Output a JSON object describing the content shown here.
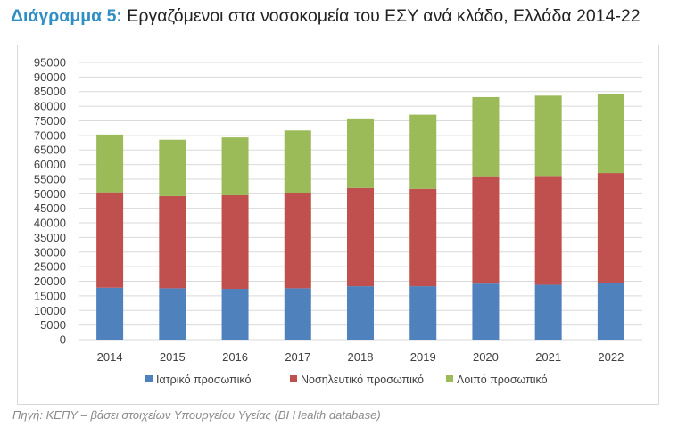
{
  "title": {
    "lead": "Διάγραμμα 5:",
    "text": "Εργαζόμενοι στα νοσοκομεία του ΕΣΥ ανά κλάδο, Ελλάδα 2014-22"
  },
  "source": "Πηγή: ΚΕΠΥ – βάσει στοιχείων Υπουργείου Υγείας (BI Health database)",
  "colors": {
    "series": [
      "#4f81bd",
      "#c0504d",
      "#9bbb59"
    ],
    "grid": "#d9d9d9",
    "axis_text": "#404040"
  },
  "chart_data": {
    "type": "bar",
    "stacked": true,
    "categories": [
      "2014",
      "2015",
      "2016",
      "2017",
      "2018",
      "2019",
      "2020",
      "2021",
      "2022"
    ],
    "series": [
      {
        "name": "Ιατρικό προσωπικό",
        "values": [
          17800,
          17600,
          17400,
          17600,
          18300,
          18300,
          19200,
          18800,
          19400
        ]
      },
      {
        "name": "Νοσηλευτικό προσωπικό",
        "values": [
          32700,
          31600,
          32100,
          32500,
          33700,
          33400,
          36800,
          37300,
          37700
        ]
      },
      {
        "name": "Λοιπό προσωπικό",
        "values": [
          19800,
          19300,
          19800,
          21600,
          23800,
          25400,
          27100,
          27500,
          27200
        ]
      }
    ],
    "yticks": [
      0,
      5000,
      10000,
      15000,
      20000,
      25000,
      30000,
      35000,
      40000,
      45000,
      50000,
      55000,
      60000,
      65000,
      70000,
      75000,
      80000,
      85000,
      90000,
      95000
    ],
    "ylim": [
      0,
      95000
    ],
    "grid": true,
    "legend_position": "bottom"
  }
}
